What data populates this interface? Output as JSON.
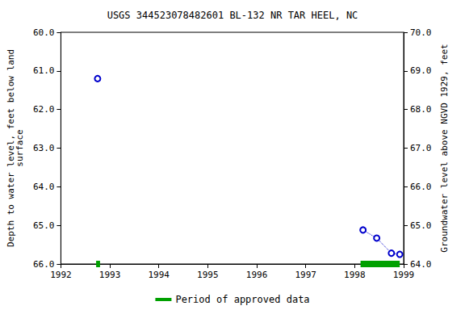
{
  "chart_data": {
    "type": "scatter",
    "title": "USGS 344523078482601 BL-132 NR TAR HEEL, NC",
    "x_label": null,
    "y_label": "Depth to water level, feet below land\nsurface",
    "y2_label": "Groundwater level above NGVD 1929, feet",
    "xlim": [
      1992,
      1999
    ],
    "xticks": [
      1992,
      1993,
      1994,
      1995,
      1996,
      1997,
      1998,
      1999
    ],
    "ylim": [
      66,
      60
    ],
    "yticks": [
      {
        "value": 60,
        "label": "60.0"
      },
      {
        "value": 61,
        "label": "61.0"
      },
      {
        "value": 62,
        "label": "62.0"
      },
      {
        "value": 63,
        "label": "63.0"
      },
      {
        "value": 64,
        "label": "64.0"
      },
      {
        "value": 65,
        "label": "65.0"
      },
      {
        "value": 66,
        "label": "66.0"
      }
    ],
    "y2lim": [
      64,
      70
    ],
    "y2ticks": [
      {
        "value": 64,
        "label": "64.0"
      },
      {
        "value": 65,
        "label": "65.0"
      },
      {
        "value": 66,
        "label": "66.0"
      },
      {
        "value": 67,
        "label": "67.0"
      },
      {
        "value": 68,
        "label": "68.0"
      },
      {
        "value": 69,
        "label": "69.0"
      },
      {
        "value": 70,
        "label": "70.0"
      }
    ],
    "grid": false,
    "legend": "bottom",
    "series": [
      {
        "x": [
          1992.75
        ],
        "values": [
          61.2
        ],
        "color": "#0000cc",
        "marker": "circle",
        "line_style": "dotted"
      },
      {
        "x": [
          1998.17,
          1998.45,
          1998.75,
          1998.92
        ],
        "values": [
          65.12,
          65.33,
          65.72,
          65.75
        ],
        "color": "#0000cc",
        "marker": "circle",
        "line_style": "dotted"
      }
    ],
    "approved_periods": {
      "name": "Period of approved data",
      "color": "#00a000",
      "ranges": [
        [
          1992.72,
          1992.8
        ],
        [
          1998.12,
          1998.92
        ]
      ]
    }
  }
}
